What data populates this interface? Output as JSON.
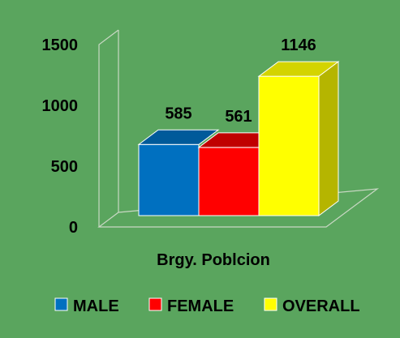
{
  "chart_data": {
    "type": "bar",
    "categories": [
      "Brgy. Poblcion"
    ],
    "series": [
      {
        "name": "MALE",
        "values": [
          585
        ],
        "color": "#0070c0",
        "top_color": "#005a9a",
        "side_color": "#004f87"
      },
      {
        "name": "FEMALE",
        "values": [
          561
        ],
        "color": "#ff0000",
        "top_color": "#c00000",
        "side_color": "#b00000"
      },
      {
        "name": "OVERALL",
        "values": [
          1146
        ],
        "color": "#ffff00",
        "top_color": "#d4d400",
        "side_color": "#b5b500"
      }
    ],
    "yticks": [
      "0",
      "500",
      "1000",
      "1500"
    ],
    "ylim": [
      0,
      1500
    ],
    "data_labels": [
      "585",
      "561",
      "1146"
    ],
    "title": "",
    "xlabel": "",
    "ylabel": "",
    "legend_position": "bottom",
    "grid": false,
    "style": "3d-column"
  },
  "colors": {
    "background": "#5aa55e"
  }
}
